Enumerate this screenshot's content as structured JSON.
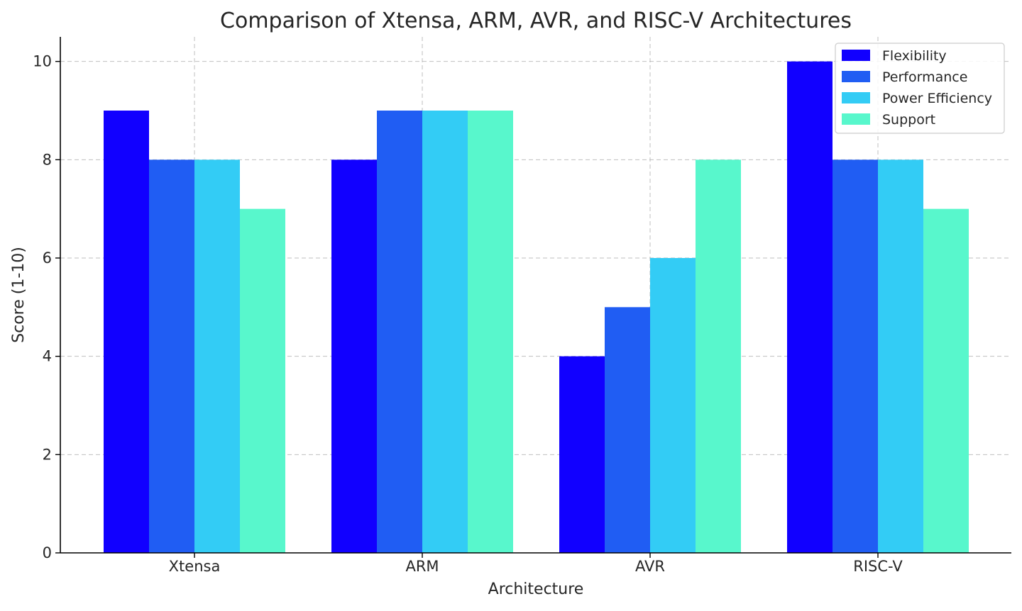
{
  "chart_data": {
    "type": "bar",
    "title": "Comparison of Xtensa, ARM, AVR, and RISC-V Architectures",
    "xlabel": "Architecture",
    "ylabel": "Score (1-10)",
    "categories": [
      "Xtensa",
      "ARM",
      "AVR",
      "RISC-V"
    ],
    "series": [
      {
        "name": "Flexibility",
        "values": [
          9,
          8,
          4,
          10
        ],
        "color": "#1100FF"
      },
      {
        "name": "Performance",
        "values": [
          8,
          9,
          5,
          8
        ],
        "color": "#205DF3"
      },
      {
        "name": "Power Efficiency",
        "values": [
          8,
          9,
          6,
          8
        ],
        "color": "#33CCF5"
      },
      {
        "name": "Support",
        "values": [
          7,
          9,
          8,
          7
        ],
        "color": "#58F7CC"
      }
    ],
    "ylim": [
      0,
      10.5
    ],
    "yticks": [
      0,
      2,
      4,
      6,
      8,
      10
    ],
    "grid": true,
    "legend_position": "top-right"
  }
}
